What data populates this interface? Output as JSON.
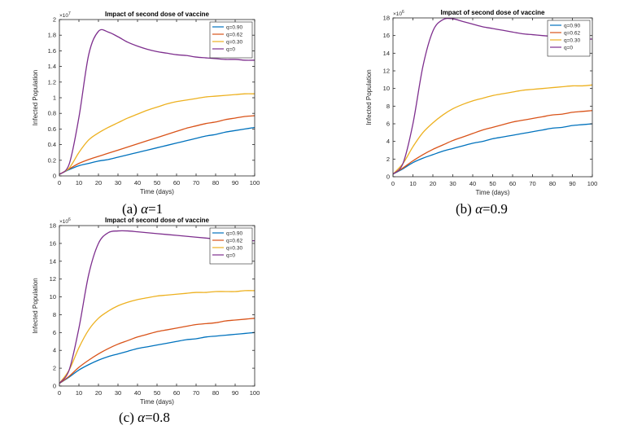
{
  "chart_data": [
    {
      "type": "line",
      "title": "Impact of second dose of vaccine",
      "xlabel": "Time (days)",
      "ylabel": "Infected Population",
      "exponent_label": "×10",
      "exponent": "7",
      "xlim": [
        0,
        100
      ],
      "ylim": [
        0,
        2
      ],
      "xticks": [
        0,
        10,
        20,
        30,
        40,
        50,
        60,
        70,
        80,
        90,
        100
      ],
      "yticks": [
        0,
        0.2,
        0.4,
        0.6,
        0.8,
        1,
        1.2,
        1.4,
        1.6,
        1.8,
        2
      ],
      "legend_position": "top-right",
      "caption_prefix": "(a)",
      "caption_alpha": "α",
      "caption_value": "=1",
      "x": [
        0,
        5,
        10,
        15,
        20,
        25,
        30,
        35,
        40,
        45,
        50,
        55,
        60,
        65,
        70,
        75,
        80,
        85,
        90,
        95,
        100
      ],
      "series": [
        {
          "name": "q=0.90",
          "color": "#0072BD",
          "values": [
            0.02,
            0.08,
            0.13,
            0.16,
            0.19,
            0.21,
            0.24,
            0.27,
            0.3,
            0.33,
            0.36,
            0.39,
            0.42,
            0.45,
            0.48,
            0.51,
            0.53,
            0.56,
            0.58,
            0.6,
            0.62
          ]
        },
        {
          "name": "q=0.62",
          "color": "#D95319",
          "values": [
            0.02,
            0.09,
            0.16,
            0.21,
            0.25,
            0.29,
            0.33,
            0.37,
            0.41,
            0.45,
            0.49,
            0.53,
            0.57,
            0.61,
            0.64,
            0.67,
            0.69,
            0.72,
            0.74,
            0.76,
            0.77
          ]
        },
        {
          "name": "q=0.30",
          "color": "#EDB120",
          "values": [
            0.02,
            0.1,
            0.3,
            0.46,
            0.55,
            0.62,
            0.68,
            0.74,
            0.79,
            0.84,
            0.88,
            0.92,
            0.95,
            0.97,
            0.99,
            1.01,
            1.02,
            1.03,
            1.04,
            1.05,
            1.05
          ]
        },
        {
          "name": "q=0",
          "color": "#7E2F8E",
          "values": [
            0.02,
            0.15,
            0.75,
            1.55,
            1.85,
            1.84,
            1.78,
            1.71,
            1.66,
            1.62,
            1.59,
            1.57,
            1.55,
            1.54,
            1.52,
            1.51,
            1.5,
            1.49,
            1.49,
            1.48,
            1.48
          ]
        }
      ]
    },
    {
      "type": "line",
      "title": "Impact of second dose of vaccine",
      "xlabel": "Time (days)",
      "ylabel": "Infected Population",
      "exponent_label": "×10",
      "exponent": "6",
      "xlim": [
        0,
        100
      ],
      "ylim": [
        0,
        18
      ],
      "xticks": [
        0,
        10,
        20,
        30,
        40,
        50,
        60,
        70,
        80,
        90,
        100
      ],
      "yticks": [
        0,
        2,
        4,
        6,
        8,
        10,
        12,
        14,
        16,
        18
      ],
      "legend_position": "top-right",
      "caption_prefix": "(b)",
      "caption_alpha": "α",
      "caption_value": "=0.9",
      "x": [
        0,
        5,
        10,
        15,
        20,
        25,
        30,
        35,
        40,
        45,
        50,
        55,
        60,
        65,
        70,
        75,
        80,
        85,
        90,
        95,
        100
      ],
      "series": [
        {
          "name": "q=0.90",
          "color": "#0072BD",
          "values": [
            0.3,
            0.9,
            1.6,
            2.1,
            2.5,
            2.9,
            3.2,
            3.5,
            3.8,
            4.0,
            4.3,
            4.5,
            4.7,
            4.9,
            5.1,
            5.3,
            5.5,
            5.6,
            5.8,
            5.9,
            6.0
          ]
        },
        {
          "name": "q=0.62",
          "color": "#D95319",
          "values": [
            0.3,
            1.0,
            1.8,
            2.5,
            3.1,
            3.6,
            4.1,
            4.5,
            4.9,
            5.3,
            5.6,
            5.9,
            6.2,
            6.4,
            6.6,
            6.8,
            7.0,
            7.1,
            7.3,
            7.4,
            7.5
          ]
        },
        {
          "name": "q=0.30",
          "color": "#EDB120",
          "values": [
            0.3,
            1.5,
            3.4,
            5.0,
            6.1,
            7.0,
            7.7,
            8.2,
            8.6,
            8.9,
            9.2,
            9.4,
            9.6,
            9.8,
            9.9,
            10.0,
            10.1,
            10.2,
            10.3,
            10.3,
            10.4
          ]
        },
        {
          "name": "q=0",
          "color": "#7E2F8E",
          "values": [
            0.3,
            1.5,
            6.0,
            12.5,
            16.5,
            17.8,
            17.9,
            17.6,
            17.3,
            17.0,
            16.8,
            16.6,
            16.4,
            16.2,
            16.1,
            16.0,
            15.9,
            15.8,
            15.7,
            15.6,
            15.6
          ]
        }
      ]
    },
    {
      "type": "line",
      "title": "Impact of second dose of vaccine",
      "xlabel": "Time (days)",
      "ylabel": "Infected Population",
      "exponent_label": "×10",
      "exponent": "6",
      "xlim": [
        0,
        100
      ],
      "ylim": [
        0,
        18
      ],
      "xticks": [
        0,
        10,
        20,
        30,
        40,
        50,
        60,
        70,
        80,
        90,
        100
      ],
      "yticks": [
        0,
        2,
        4,
        6,
        8,
        10,
        12,
        14,
        16,
        18
      ],
      "legend_position": "top-right",
      "caption_prefix": "(c)",
      "caption_alpha": "α",
      "caption_value": "=0.8",
      "x": [
        0,
        5,
        10,
        15,
        20,
        25,
        30,
        35,
        40,
        45,
        50,
        55,
        60,
        65,
        70,
        75,
        80,
        85,
        90,
        95,
        100
      ],
      "series": [
        {
          "name": "q=0.90",
          "color": "#0072BD",
          "values": [
            0.3,
            1.0,
            1.8,
            2.4,
            2.9,
            3.3,
            3.6,
            3.9,
            4.2,
            4.4,
            4.6,
            4.8,
            5.0,
            5.2,
            5.3,
            5.5,
            5.6,
            5.7,
            5.8,
            5.9,
            6.0
          ]
        },
        {
          "name": "q=0.62",
          "color": "#D95319",
          "values": [
            0.3,
            1.1,
            2.1,
            2.9,
            3.6,
            4.2,
            4.7,
            5.1,
            5.5,
            5.8,
            6.1,
            6.3,
            6.5,
            6.7,
            6.9,
            7.0,
            7.1,
            7.3,
            7.4,
            7.5,
            7.6
          ]
        },
        {
          "name": "q=0.30",
          "color": "#EDB120",
          "values": [
            0.3,
            1.8,
            4.3,
            6.3,
            7.6,
            8.4,
            9.0,
            9.4,
            9.7,
            9.9,
            10.1,
            10.2,
            10.3,
            10.4,
            10.5,
            10.5,
            10.6,
            10.6,
            10.6,
            10.7,
            10.7
          ]
        },
        {
          "name": "q=0",
          "color": "#7E2F8E",
          "values": [
            0.3,
            1.8,
            6.5,
            12.5,
            16.0,
            17.2,
            17.4,
            17.4,
            17.3,
            17.2,
            17.1,
            17.0,
            16.9,
            16.8,
            16.7,
            16.6,
            16.5,
            16.4,
            16.4,
            16.3,
            16.3
          ]
        }
      ]
    }
  ]
}
